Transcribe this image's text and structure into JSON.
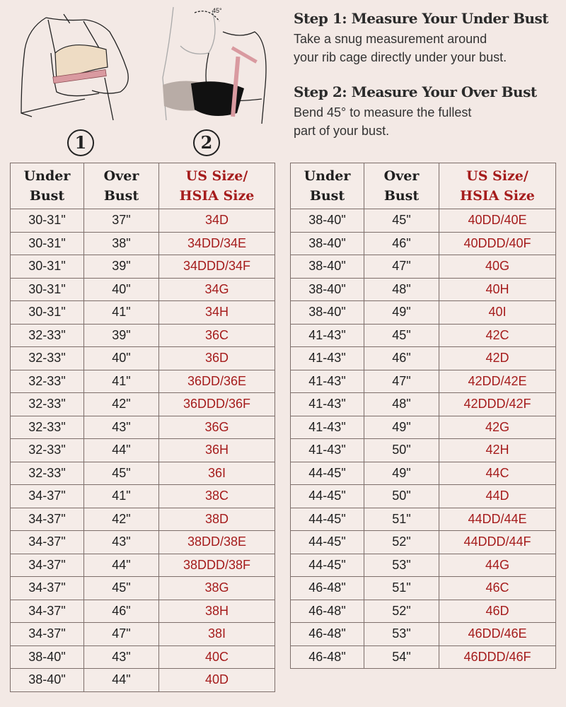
{
  "illustrations": {
    "step1_number": "1",
    "step2_number": "2",
    "angle_label": "45°"
  },
  "steps": [
    {
      "title": "Step 1: Measure Your Under Bust",
      "text": "Take a snug measurement around\nyour rib cage directly under your bust."
    },
    {
      "title": "Step 2: Measure Your Over Bust",
      "text": "Bend 45° to measure the fullest\npart of your bust."
    }
  ],
  "colors": {
    "background": "#f3e9e5",
    "accent_red": "#a51c1c",
    "border": "#7d6e6a"
  },
  "table": {
    "headers": [
      "Under\nBust",
      "Over\nBust",
      "US Size/\nHSIA Size"
    ],
    "left_rows": [
      [
        "30-31\"",
        "37\"",
        "34D"
      ],
      [
        "30-31\"",
        "38\"",
        "34DD/34E"
      ],
      [
        "30-31\"",
        "39\"",
        "34DDD/34F"
      ],
      [
        "30-31\"",
        "40\"",
        "34G"
      ],
      [
        "30-31\"",
        "41\"",
        "34H"
      ],
      [
        "32-33\"",
        "39\"",
        "36C"
      ],
      [
        "32-33\"",
        "40\"",
        "36D"
      ],
      [
        "32-33\"",
        "41\"",
        "36DD/36E"
      ],
      [
        "32-33\"",
        "42\"",
        "36DDD/36F"
      ],
      [
        "32-33\"",
        "43\"",
        "36G"
      ],
      [
        "32-33\"",
        "44\"",
        "36H"
      ],
      [
        "32-33\"",
        "45\"",
        "36I"
      ],
      [
        "34-37\"",
        "41\"",
        "38C"
      ],
      [
        "34-37\"",
        "42\"",
        "38D"
      ],
      [
        "34-37\"",
        "43\"",
        "38DD/38E"
      ],
      [
        "34-37\"",
        "44\"",
        "38DDD/38F"
      ],
      [
        "34-37\"",
        "45\"",
        "38G"
      ],
      [
        "34-37\"",
        "46\"",
        "38H"
      ],
      [
        "34-37\"",
        "47\"",
        "38I"
      ],
      [
        "38-40\"",
        "43\"",
        "40C"
      ],
      [
        "38-40\"",
        "44\"",
        "40D"
      ]
    ],
    "right_rows": [
      [
        "38-40\"",
        "45\"",
        "40DD/40E"
      ],
      [
        "38-40\"",
        "46\"",
        "40DDD/40F"
      ],
      [
        "38-40\"",
        "47\"",
        "40G"
      ],
      [
        "38-40\"",
        "48\"",
        "40H"
      ],
      [
        "38-40\"",
        "49\"",
        "40I"
      ],
      [
        "41-43\"",
        "45\"",
        "42C"
      ],
      [
        "41-43\"",
        "46\"",
        "42D"
      ],
      [
        "41-43\"",
        "47\"",
        "42DD/42E"
      ],
      [
        "41-43\"",
        "48\"",
        "42DDD/42F"
      ],
      [
        "41-43\"",
        "49\"",
        "42G"
      ],
      [
        "41-43\"",
        "50\"",
        "42H"
      ],
      [
        "44-45\"",
        "49\"",
        "44C"
      ],
      [
        "44-45\"",
        "50\"",
        "44D"
      ],
      [
        "44-45\"",
        "51\"",
        "44DD/44E"
      ],
      [
        "44-45\"",
        "52\"",
        "44DDD/44F"
      ],
      [
        "44-45\"",
        "53\"",
        "44G"
      ],
      [
        "46-48\"",
        "51\"",
        "46C"
      ],
      [
        "46-48\"",
        "52\"",
        "46D"
      ],
      [
        "46-48\"",
        "53\"",
        "46DD/46E"
      ],
      [
        "46-48\"",
        "54\"",
        "46DDD/46F"
      ]
    ]
  }
}
